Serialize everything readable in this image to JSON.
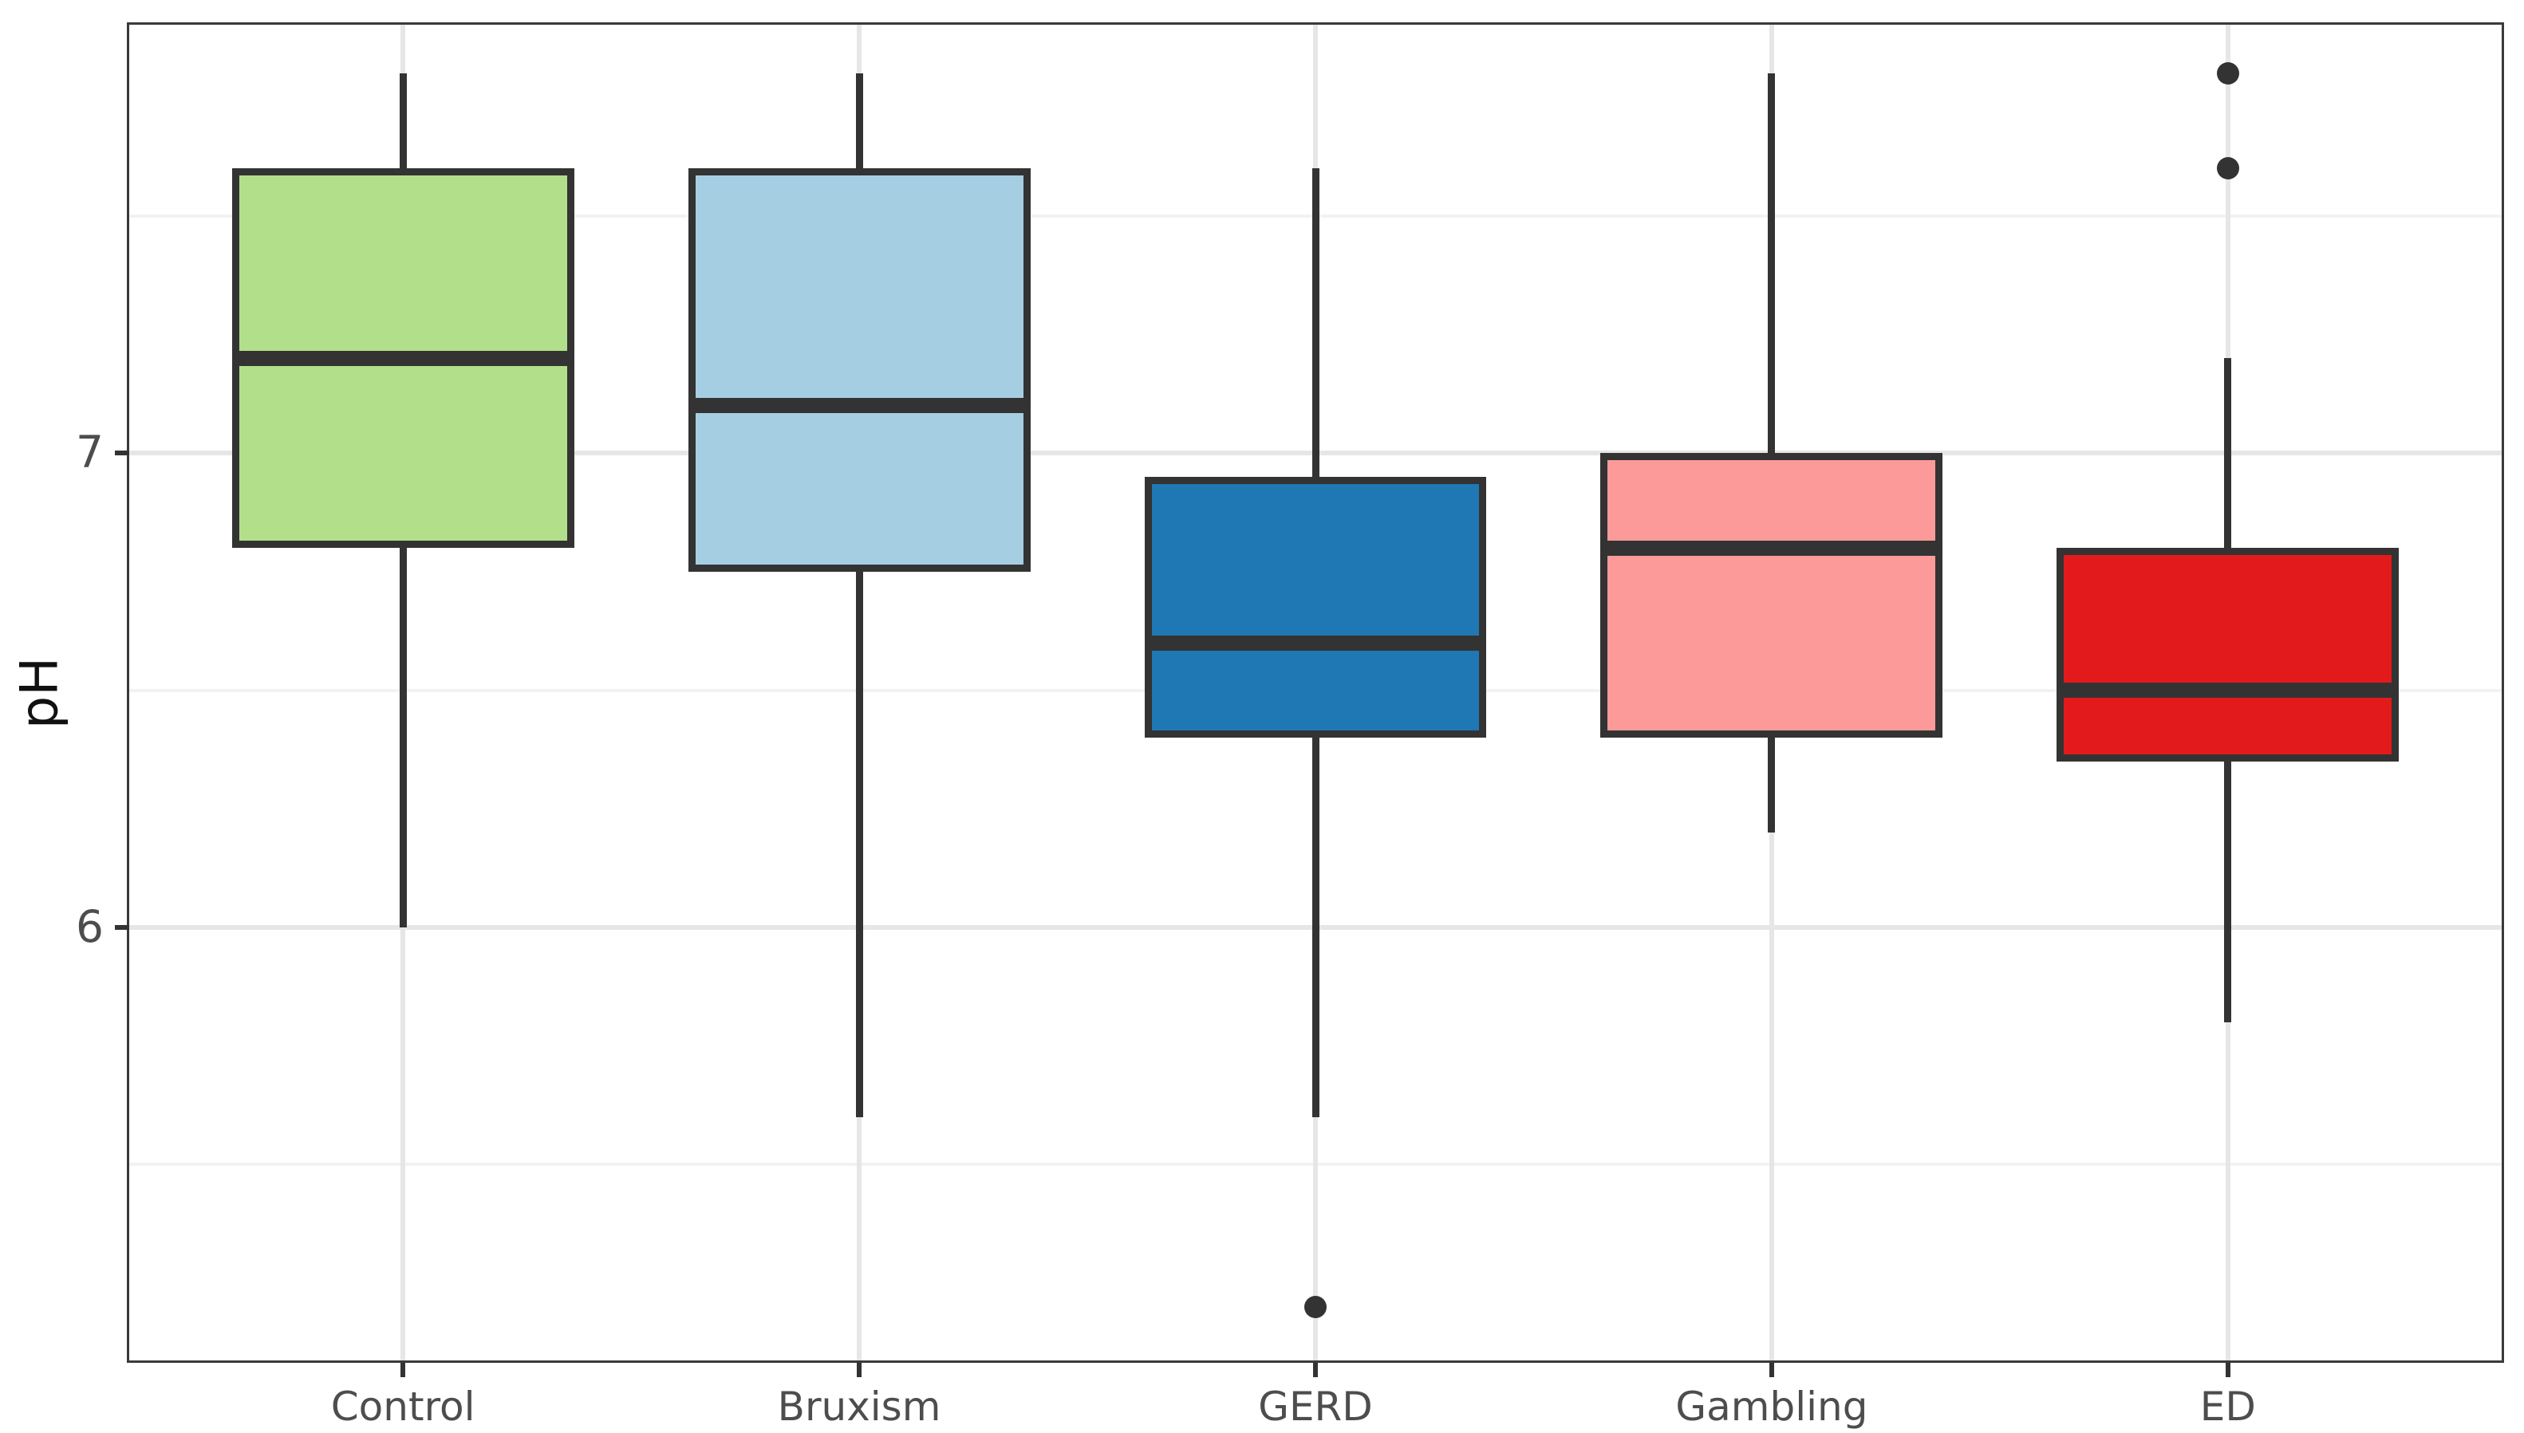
{
  "axes": {
    "y": {
      "title": "pH",
      "tick_labels": [
        "7",
        "6"
      ],
      "tick_values": [
        7,
        6
      ],
      "minor_gridlines": [
        7.5,
        6.5,
        5.5
      ],
      "range": [
        5.087,
        7.903
      ]
    },
    "x": {
      "tick_labels": [
        "Control",
        "Bruxism",
        "GERD",
        "Gambling",
        "ED"
      ]
    }
  },
  "chart_data": {
    "type": "boxplot",
    "title": "",
    "xlabel": "",
    "ylabel": "pH",
    "categories": [
      "Control",
      "Bruxism",
      "GERD",
      "Gambling",
      "ED"
    ],
    "series": [
      {
        "name": "Control",
        "fill": "#B2DF8A",
        "whisker_low": 6.0,
        "q1": 6.8,
        "median": 7.2,
        "q3": 7.6,
        "whisker_high": 7.8,
        "outliers": []
      },
      {
        "name": "Bruxism",
        "fill": "#A6CEE3",
        "whisker_low": 5.6,
        "q1": 6.75,
        "median": 7.1,
        "q3": 7.6,
        "whisker_high": 7.8,
        "outliers": []
      },
      {
        "name": "GERD",
        "fill": "#1F78B4",
        "whisker_low": 5.6,
        "q1": 6.4,
        "median": 6.6,
        "q3": 6.95,
        "whisker_high": 7.6,
        "outliers": [
          5.2
        ]
      },
      {
        "name": "Gambling",
        "fill": "#FB9A99",
        "whisker_low": 6.2,
        "q1": 6.4,
        "median": 6.8,
        "q3": 7.0,
        "whisker_high": 7.8,
        "outliers": []
      },
      {
        "name": "ED",
        "fill": "#E31A1C",
        "whisker_low": 5.8,
        "q1": 6.35,
        "median": 6.5,
        "q3": 6.8,
        "whisker_high": 7.2,
        "outliers": [
          7.6,
          7.8
        ]
      }
    ],
    "ylim": [
      5.087,
      7.903
    ],
    "yticks": [
      7,
      6
    ],
    "grid": {
      "major": [
        7,
        6
      ],
      "minor": [
        7.5,
        6.5,
        5.5
      ]
    },
    "legend": "none"
  },
  "style": {
    "background": "#FFFFFF",
    "panel_border": "#3A3A3A",
    "line_color": "#333333",
    "grid_major": "#E6E6E6",
    "grid_minor": "#F2F2F2",
    "tick_text": "#4D4D4D",
    "axis_title": "#111111"
  }
}
